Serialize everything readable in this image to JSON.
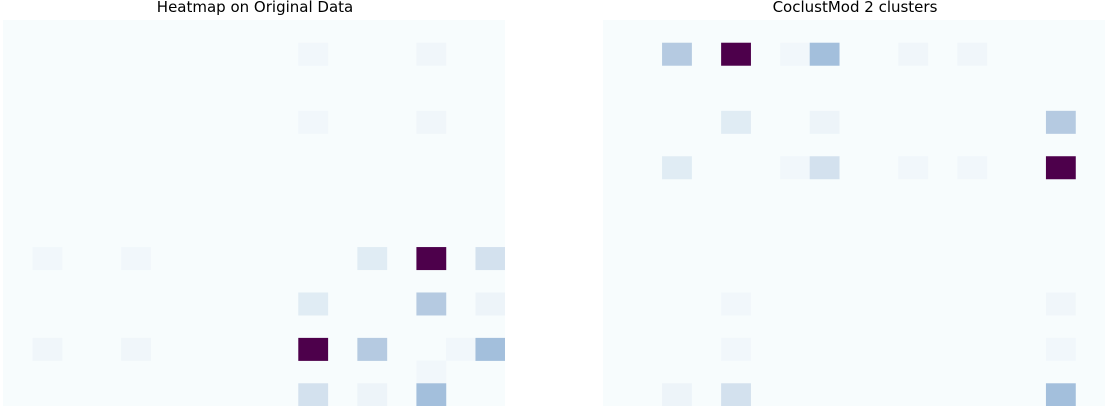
{
  "chart_data": [
    {
      "type": "heatmap",
      "title": "Heatmap on Original Data",
      "colormap": "BuPu",
      "rows": 17,
      "cols": 17,
      "grid": false,
      "cells": [
        {
          "row": 1,
          "col": 10,
          "value": 0.04
        },
        {
          "row": 1,
          "col": 14,
          "value": 0.05
        },
        {
          "row": 4,
          "col": 10,
          "value": 0.04
        },
        {
          "row": 4,
          "col": 14,
          "value": 0.05
        },
        {
          "row": 10,
          "col": 1,
          "value": 0.04
        },
        {
          "row": 10,
          "col": 4,
          "value": 0.04
        },
        {
          "row": 10,
          "col": 12,
          "value": 0.15
        },
        {
          "row": 10,
          "col": 14,
          "value": 1.0
        },
        {
          "row": 10,
          "col": 16,
          "value": 0.2
        },
        {
          "row": 12,
          "col": 10,
          "value": 0.15
        },
        {
          "row": 12,
          "col": 14,
          "value": 0.32
        },
        {
          "row": 12,
          "col": 16,
          "value": 0.07
        },
        {
          "row": 14,
          "col": 1,
          "value": 0.05
        },
        {
          "row": 14,
          "col": 4,
          "value": 0.05
        },
        {
          "row": 14,
          "col": 10,
          "value": 1.0
        },
        {
          "row": 14,
          "col": 12,
          "value": 0.32
        },
        {
          "row": 14,
          "col": 15,
          "value": 0.04
        },
        {
          "row": 14,
          "col": 16,
          "value": 0.42
        },
        {
          "row": 15,
          "col": 14,
          "value": 0.04
        },
        {
          "row": 16,
          "col": 10,
          "value": 0.2
        },
        {
          "row": 16,
          "col": 12,
          "value": 0.07
        },
        {
          "row": 16,
          "col": 14,
          "value": 0.42
        }
      ]
    },
    {
      "type": "heatmap",
      "title": "CoclustMod 2 clusters",
      "colormap": "BuPu",
      "rows": 17,
      "cols": 17,
      "grid": false,
      "cells": [
        {
          "row": 1,
          "col": 2,
          "value": 0.32
        },
        {
          "row": 1,
          "col": 4,
          "value": 1.0
        },
        {
          "row": 1,
          "col": 6,
          "value": 0.04
        },
        {
          "row": 1,
          "col": 7,
          "value": 0.42
        },
        {
          "row": 1,
          "col": 10,
          "value": 0.05
        },
        {
          "row": 1,
          "col": 12,
          "value": 0.05
        },
        {
          "row": 4,
          "col": 4,
          "value": 0.15
        },
        {
          "row": 4,
          "col": 7,
          "value": 0.07
        },
        {
          "row": 4,
          "col": 15,
          "value": 0.32
        },
        {
          "row": 6,
          "col": 2,
          "value": 0.15
        },
        {
          "row": 6,
          "col": 6,
          "value": 0.04
        },
        {
          "row": 6,
          "col": 7,
          "value": 0.2
        },
        {
          "row": 6,
          "col": 10,
          "value": 0.04
        },
        {
          "row": 6,
          "col": 12,
          "value": 0.04
        },
        {
          "row": 6,
          "col": 15,
          "value": 1.0
        },
        {
          "row": 12,
          "col": 4,
          "value": 0.04
        },
        {
          "row": 12,
          "col": 15,
          "value": 0.05
        },
        {
          "row": 14,
          "col": 4,
          "value": 0.04
        },
        {
          "row": 14,
          "col": 15,
          "value": 0.04
        },
        {
          "row": 16,
          "col": 2,
          "value": 0.07
        },
        {
          "row": 16,
          "col": 4,
          "value": 0.2
        },
        {
          "row": 16,
          "col": 15,
          "value": 0.42
        }
      ]
    }
  ]
}
